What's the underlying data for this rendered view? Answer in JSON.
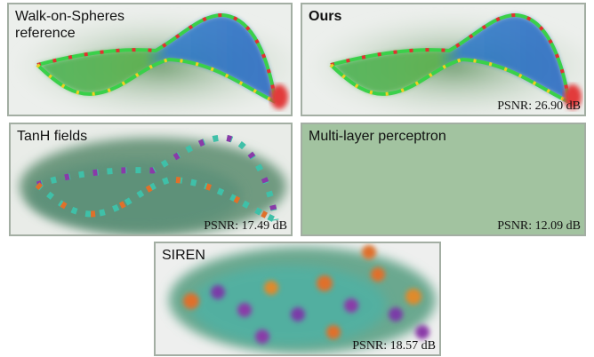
{
  "panels": [
    {
      "title": "Walk-on-Spheres reference"
    },
    {
      "title": "Ours",
      "psnr": "PSNR: 26.90 dB"
    },
    {
      "title": "TanH fields",
      "psnr": "PSNR: 17.49 dB"
    },
    {
      "title": "Multi-layer perceptron",
      "psnr": "PSNR: 12.09 dB"
    },
    {
      "title": "SIREN",
      "psnr": "PSNR: 18.57 dB"
    }
  ]
}
